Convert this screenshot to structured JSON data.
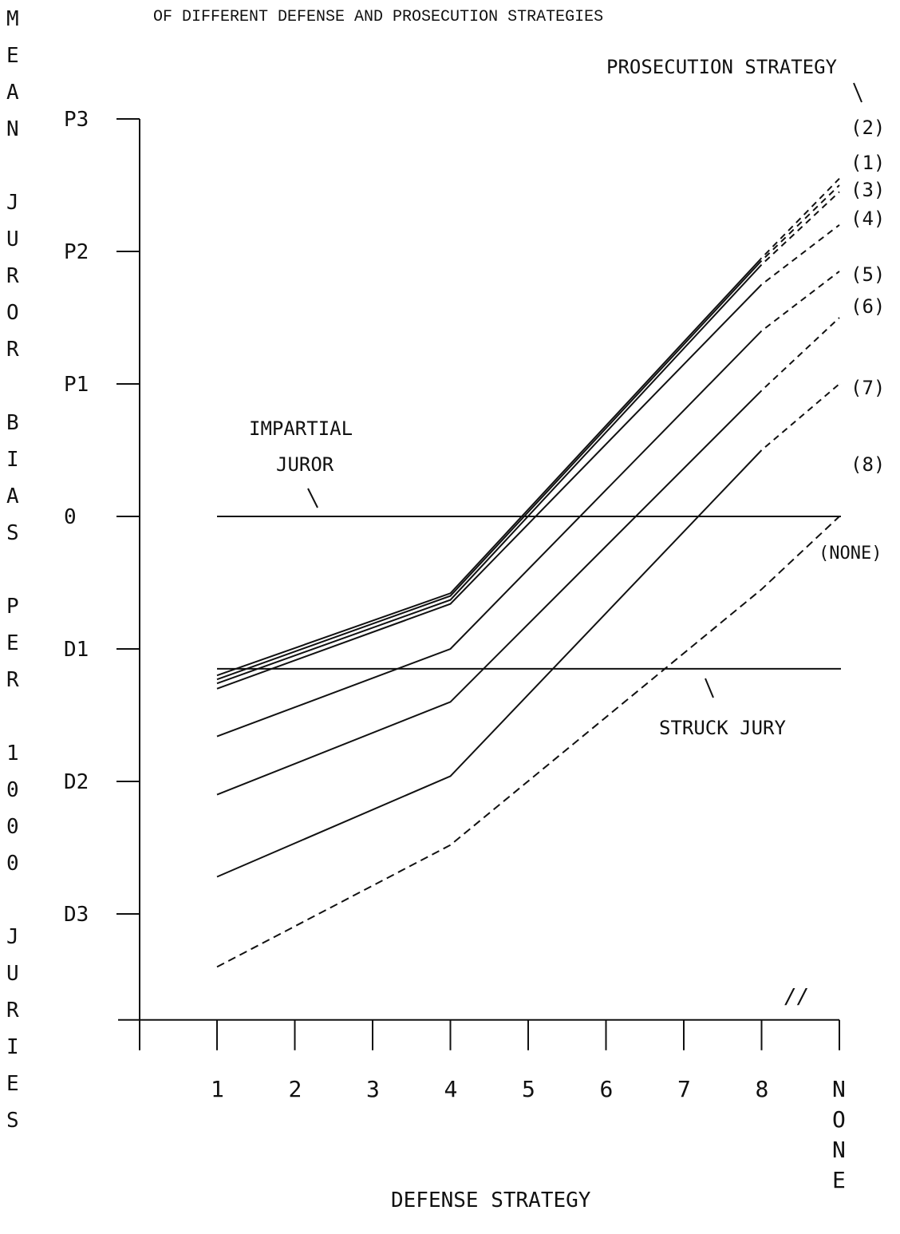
{
  "chart_data": {
    "type": "line",
    "title": "OF DIFFERENT DEFENSE AND PROSECUTION STRATEGIES",
    "xlabel": "DEFENSE STRATEGY",
    "ylabel": "MEAN JUROR BIAS PER 1000 JURIES",
    "legend_title": "PROSECUTION STRATEGY",
    "categories": [
      "1",
      "2",
      "3",
      "4",
      "5",
      "6",
      "7",
      "8",
      "NONE"
    ],
    "y_tick_labels": [
      "P3",
      "P2",
      "P1",
      "0",
      "D1",
      "D2",
      "D3"
    ],
    "y_tick_values": [
      3,
      2,
      1,
      0,
      -1,
      -2,
      -3
    ],
    "ylim": [
      -3.8,
      3
    ],
    "series": [
      {
        "name": "(2)",
        "style": "solid",
        "x": [
          "1",
          "4",
          "8",
          "NONE"
        ],
        "values": [
          -1.2,
          -0.58,
          1.95,
          2.55
        ]
      },
      {
        "name": "(1)",
        "style": "solid",
        "x": [
          "1",
          "4",
          "8",
          "NONE"
        ],
        "values": [
          -1.23,
          -0.6,
          1.93,
          2.5
        ]
      },
      {
        "name": "(3)",
        "style": "solid",
        "x": [
          "1",
          "4",
          "8",
          "NONE"
        ],
        "values": [
          -1.26,
          -0.63,
          1.9,
          2.45
        ]
      },
      {
        "name": "(4)",
        "style": "solid",
        "x": [
          "1",
          "4",
          "8",
          "NONE"
        ],
        "values": [
          -1.3,
          -0.66,
          1.75,
          2.2
        ]
      },
      {
        "name": "(5)",
        "style": "solid",
        "x": [
          "1",
          "4",
          "8",
          "NONE"
        ],
        "values": [
          -1.66,
          -1.0,
          1.4,
          1.85
        ]
      },
      {
        "name": "(6)",
        "style": "solid",
        "x": [
          "1",
          "4",
          "8",
          "NONE"
        ],
        "values": [
          -2.1,
          -1.4,
          0.95,
          1.5
        ]
      },
      {
        "name": "(7)",
        "style": "solid",
        "x": [
          "1",
          "4",
          "8",
          "NONE"
        ],
        "values": [
          -2.72,
          -1.96,
          0.5,
          1.0
        ]
      },
      {
        "name": "(8)",
        "style": "dashed",
        "x": [
          "1",
          "4",
          "8",
          "NONE"
        ],
        "values": [
          -3.4,
          -2.48,
          -0.55,
          0.0
        ]
      }
    ],
    "legend_extra": "(NONE)",
    "reference_lines": [
      {
        "label": "IMPARTIAL JUROR",
        "value": 0
      },
      {
        "label": "STRUCK JURY",
        "value": -1.15
      }
    ],
    "axis_break_mark": "//",
    "grid": false
  }
}
